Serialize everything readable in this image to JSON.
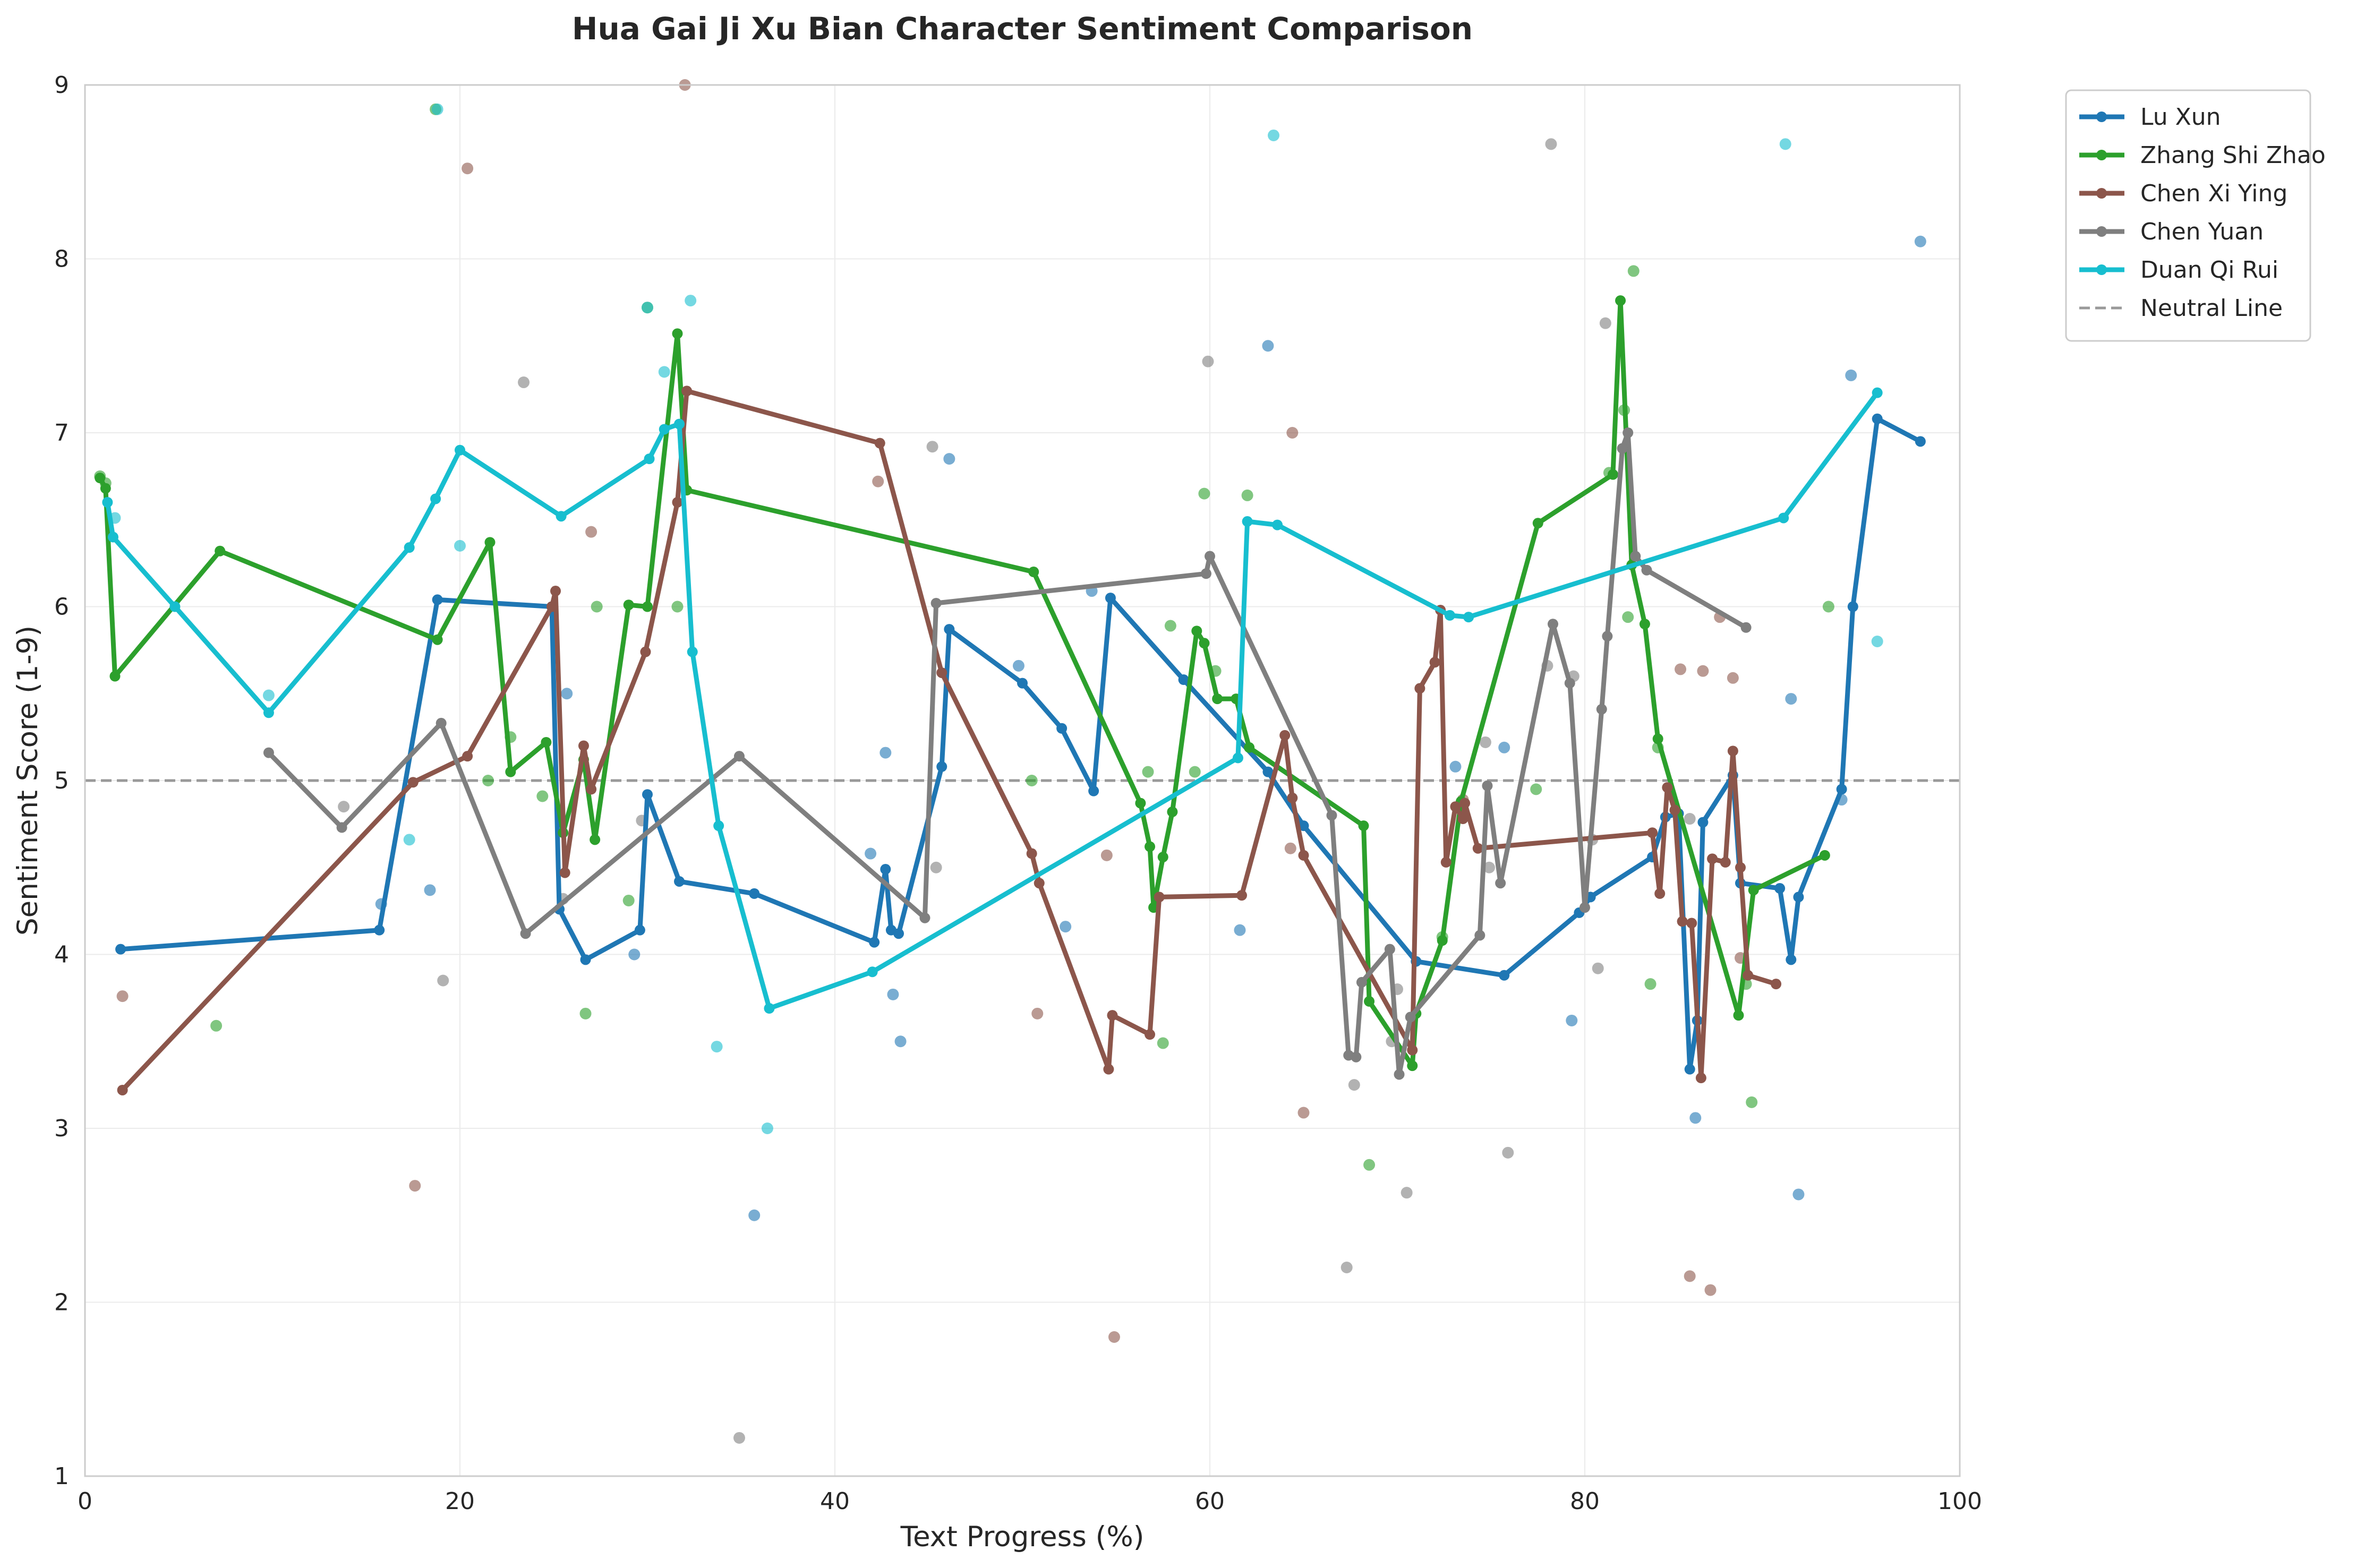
{
  "chart_data": {
    "type": "line",
    "title": "Hua Gai Ji Xu Bian Character Sentiment Comparison",
    "xlabel": "Text Progress (%)",
    "ylabel": "Sentiment Score (1-9)",
    "xlim": [
      0,
      100
    ],
    "ylim": [
      1,
      9
    ],
    "xticks": [
      0,
      20,
      40,
      60,
      80,
      100
    ],
    "yticks": [
      1,
      2,
      3,
      4,
      5,
      6,
      7,
      8,
      9
    ],
    "grid": true,
    "legend_position": "outside-top-right",
    "neutral_line": {
      "name": "Neutral Line",
      "y": 5,
      "color": "#999999",
      "style": "dashed"
    },
    "series": [
      {
        "name": "Lu Xun",
        "color": "#1f77b4",
        "x": [
          1.9,
          15.7,
          18.8,
          24.9,
          25.3,
          26.7,
          29.6,
          30.0,
          31.7,
          35.7,
          42.1,
          42.7,
          43.0,
          43.4,
          45.7,
          46.1,
          50.0,
          52.1,
          53.8,
          54.7,
          58.6,
          63.1,
          65.0,
          71.0,
          75.7,
          79.7,
          80.3,
          83.6,
          84.3,
          85.0,
          85.6,
          86.0,
          86.3,
          87.9,
          88.3,
          90.4,
          91.0,
          91.4,
          93.7,
          94.3,
          95.6,
          97.9
        ],
        "y": [
          4.03,
          4.14,
          6.04,
          6.0,
          4.26,
          3.97,
          4.14,
          4.92,
          4.42,
          4.35,
          4.07,
          4.49,
          4.14,
          4.12,
          5.08,
          5.87,
          5.56,
          5.3,
          4.94,
          6.05,
          5.58,
          5.05,
          4.74,
          3.96,
          3.88,
          4.24,
          4.33,
          4.56,
          4.79,
          4.81,
          3.34,
          3.62,
          4.76,
          5.03,
          4.41,
          4.38,
          3.97,
          4.33,
          4.95,
          6.0,
          7.08,
          6.95
        ],
        "scatter": [
          [
            15.8,
            4.29
          ],
          [
            18.4,
            4.37
          ],
          [
            25.7,
            5.5
          ],
          [
            29.3,
            4.0
          ],
          [
            35.7,
            2.5
          ],
          [
            41.9,
            4.58
          ],
          [
            42.7,
            5.16
          ],
          [
            43.1,
            3.77
          ],
          [
            43.5,
            3.5
          ],
          [
            46.1,
            6.85
          ],
          [
            49.8,
            5.66
          ],
          [
            52.3,
            4.16
          ],
          [
            53.7,
            6.09
          ],
          [
            61.6,
            4.14
          ],
          [
            63.1,
            7.5
          ],
          [
            73.1,
            5.08
          ],
          [
            75.7,
            5.19
          ],
          [
            79.3,
            3.62
          ],
          [
            85.9,
            3.06
          ],
          [
            91.0,
            5.47
          ],
          [
            91.4,
            2.62
          ],
          [
            94.2,
            7.33
          ],
          [
            93.7,
            4.89
          ],
          [
            97.9,
            8.1
          ]
        ]
      },
      {
        "name": "Zhang Shi Zhao",
        "color": "#2ca02c",
        "x": [
          0.8,
          1.1,
          1.6,
          7.2,
          18.8,
          21.6,
          22.7,
          24.6,
          25.5,
          26.6,
          27.2,
          29.0,
          30.0,
          31.6,
          32.1,
          50.6,
          56.3,
          56.8,
          57.0,
          57.5,
          58.0,
          59.3,
          59.7,
          60.4,
          61.4,
          62.1,
          68.2,
          68.5,
          70.8,
          71.0,
          72.4,
          73.4,
          77.5,
          81.5,
          81.9,
          82.5,
          83.2,
          83.9,
          88.2,
          89.0,
          92.8
        ],
        "y": [
          6.74,
          6.68,
          5.6,
          6.32,
          5.81,
          6.37,
          5.05,
          5.22,
          4.7,
          5.12,
          4.66,
          6.01,
          6.0,
          7.57,
          6.67,
          6.2,
          4.87,
          4.62,
          4.27,
          4.56,
          4.82,
          5.86,
          5.79,
          5.47,
          5.47,
          5.19,
          4.74,
          3.73,
          3.36,
          3.66,
          4.08,
          4.88,
          6.48,
          6.76,
          7.76,
          6.24,
          5.9,
          5.24,
          3.65,
          4.37,
          4.57
        ],
        "scatter": [
          [
            0.8,
            6.75
          ],
          [
            1.1,
            6.71
          ],
          [
            7.0,
            3.59
          ],
          [
            18.7,
            8.86
          ],
          [
            21.5,
            5.0
          ],
          [
            22.7,
            5.25
          ],
          [
            24.4,
            4.91
          ],
          [
            26.7,
            3.66
          ],
          [
            27.3,
            6.0
          ],
          [
            29.0,
            4.31
          ],
          [
            30.0,
            7.72
          ],
          [
            31.6,
            6.0
          ],
          [
            50.5,
            5.0
          ],
          [
            56.7,
            5.05
          ],
          [
            57.5,
            3.49
          ],
          [
            57.9,
            5.89
          ],
          [
            59.2,
            5.05
          ],
          [
            59.7,
            6.65
          ],
          [
            60.3,
            5.63
          ],
          [
            62.0,
            6.64
          ],
          [
            68.5,
            2.79
          ],
          [
            72.4,
            4.1
          ],
          [
            77.4,
            4.95
          ],
          [
            81.3,
            6.77
          ],
          [
            82.1,
            7.13
          ],
          [
            82.3,
            5.94
          ],
          [
            82.6,
            7.93
          ],
          [
            83.5,
            3.83
          ],
          [
            83.9,
            5.19
          ],
          [
            88.6,
            3.83
          ],
          [
            88.9,
            3.15
          ],
          [
            93.0,
            6.0
          ]
        ]
      },
      {
        "name": "Chen Xi Ying",
        "color": "#8c564b",
        "x": [
          2.0,
          17.5,
          20.4,
          24.9,
          25.1,
          25.6,
          26.6,
          27.0,
          29.9,
          31.6,
          32.1,
          42.4,
          45.7,
          50.5,
          50.9,
          54.6,
          54.8,
          56.8,
          57.3,
          61.7,
          64.0,
          64.4,
          65.0,
          70.8,
          71.2,
          72.0,
          72.3,
          72.6,
          73.1,
          73.5,
          73.6,
          74.3,
          83.6,
          84.0,
          84.4,
          84.8,
          85.2,
          85.7,
          86.2,
          86.8,
          87.5,
          87.9,
          88.3,
          88.7,
          90.2
        ],
        "y": [
          3.22,
          4.99,
          5.14,
          6.0,
          6.09,
          4.47,
          5.2,
          4.95,
          5.74,
          6.6,
          7.24,
          6.94,
          5.62,
          4.58,
          4.41,
          3.34,
          3.65,
          3.54,
          4.33,
          4.34,
          5.26,
          4.9,
          4.57,
          3.45,
          5.53,
          5.68,
          5.98,
          4.53,
          4.85,
          4.78,
          4.87,
          4.61,
          4.7,
          4.35,
          4.96,
          4.83,
          4.19,
          4.18,
          3.29,
          4.55,
          4.53,
          5.17,
          4.5,
          3.88,
          3.83
        ],
        "scatter": [
          [
            2.0,
            3.76
          ],
          [
            17.6,
            2.67
          ],
          [
            20.4,
            8.52
          ],
          [
            27.0,
            6.43
          ],
          [
            32.0,
            9.0
          ],
          [
            42.3,
            6.72
          ],
          [
            50.8,
            3.66
          ],
          [
            54.9,
            1.8
          ],
          [
            54.5,
            4.57
          ],
          [
            64.4,
            7.0
          ],
          [
            64.3,
            4.61
          ],
          [
            65.0,
            3.09
          ],
          [
            73.5,
            4.89
          ],
          [
            85.1,
            5.64
          ],
          [
            85.6,
            2.15
          ],
          [
            86.3,
            5.63
          ],
          [
            86.7,
            2.07
          ],
          [
            87.2,
            5.94
          ],
          [
            87.9,
            5.59
          ],
          [
            88.3,
            3.98
          ]
        ]
      },
      {
        "name": "Chen Yuan",
        "color": "#7f7f7f",
        "x": [
          9.8,
          13.7,
          19.0,
          23.5,
          34.9,
          44.8,
          45.4,
          59.8,
          60.0,
          66.5,
          67.4,
          67.8,
          68.1,
          69.6,
          70.1,
          70.7,
          74.4,
          74.8,
          75.5,
          78.3,
          79.2,
          80.0,
          80.9,
          81.2,
          82.0,
          82.3,
          82.7,
          83.3,
          88.6
        ],
        "y": [
          5.16,
          4.73,
          5.33,
          4.12,
          5.14,
          4.21,
          6.02,
          6.19,
          6.29,
          4.8,
          3.42,
          3.41,
          3.84,
          4.03,
          3.31,
          3.64,
          4.11,
          4.97,
          4.41,
          5.9,
          5.56,
          4.27,
          5.41,
          5.83,
          6.91,
          7.0,
          6.29,
          6.21,
          5.88
        ],
        "scatter": [
          [
            13.8,
            4.85
          ],
          [
            19.1,
            3.85
          ],
          [
            23.4,
            7.29
          ],
          [
            25.5,
            4.32
          ],
          [
            29.7,
            4.77
          ],
          [
            34.9,
            1.22
          ],
          [
            45.2,
            6.92
          ],
          [
            45.4,
            4.5
          ],
          [
            59.9,
            7.41
          ],
          [
            67.3,
            2.2
          ],
          [
            67.7,
            3.25
          ],
          [
            69.7,
            3.5
          ],
          [
            70.0,
            3.8
          ],
          [
            70.5,
            2.63
          ],
          [
            74.7,
            5.22
          ],
          [
            74.9,
            4.5
          ],
          [
            75.9,
            2.86
          ],
          [
            78.2,
            8.66
          ],
          [
            78.0,
            5.66
          ],
          [
            79.4,
            5.6
          ],
          [
            80.4,
            4.66
          ],
          [
            80.7,
            3.92
          ],
          [
            81.1,
            7.63
          ],
          [
            85.6,
            4.78
          ]
        ]
      },
      {
        "name": "Duan Qi Rui",
        "color": "#17becf",
        "x": [
          1.2,
          1.5,
          4.8,
          9.8,
          17.3,
          18.7,
          20.0,
          25.4,
          30.1,
          30.9,
          31.7,
          32.4,
          33.8,
          36.5,
          42.0,
          61.5,
          62.0,
          63.6,
          72.8,
          73.8,
          90.6,
          95.6
        ],
        "y": [
          6.6,
          6.4,
          6.0,
          5.39,
          6.34,
          6.62,
          6.9,
          6.52,
          6.85,
          7.02,
          7.05,
          5.74,
          4.74,
          3.69,
          3.9,
          5.13,
          6.49,
          6.47,
          5.95,
          5.94,
          6.51,
          7.23
        ],
        "scatter": [
          [
            1.6,
            6.51
          ],
          [
            9.8,
            5.49
          ],
          [
            17.3,
            4.66
          ],
          [
            18.8,
            8.86
          ],
          [
            20.0,
            6.35
          ],
          [
            30.0,
            7.72
          ],
          [
            30.9,
            7.35
          ],
          [
            32.3,
            7.76
          ],
          [
            33.7,
            3.47
          ],
          [
            36.4,
            3.0
          ],
          [
            63.4,
            8.71
          ],
          [
            90.7,
            8.66
          ],
          [
            95.6,
            5.8
          ]
        ]
      }
    ]
  }
}
